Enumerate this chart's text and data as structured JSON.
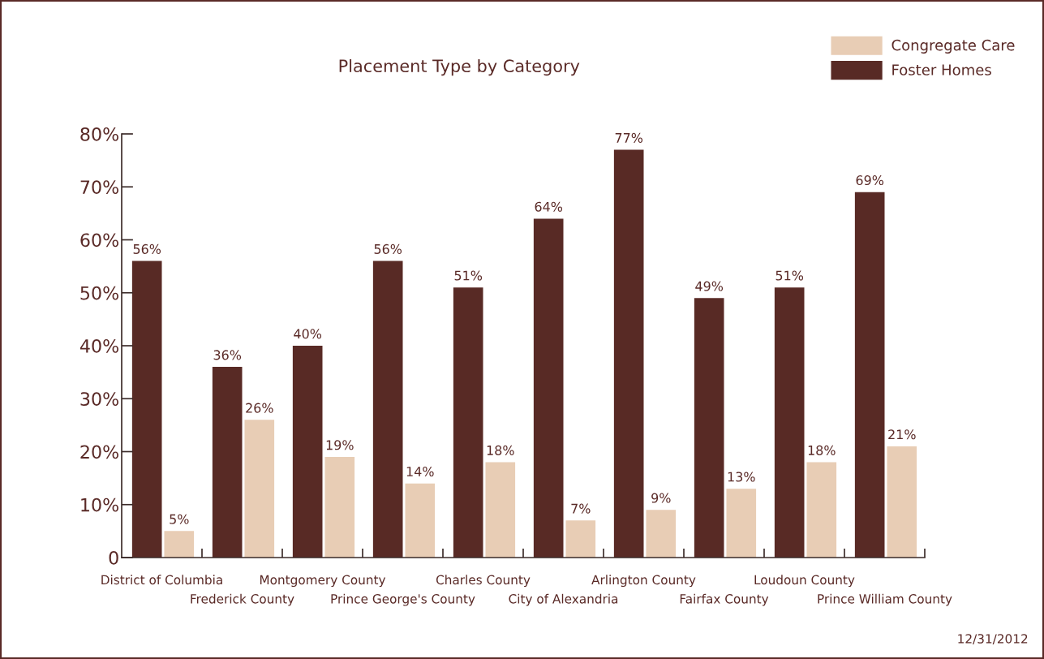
{
  "chart_data": {
    "type": "bar",
    "title": "Placement Type by Category",
    "categories": [
      "District of Columbia",
      "Frederick County",
      "Montgomery County",
      "Prince George's County",
      "Charles County",
      "City of Alexandria",
      "Arlington County",
      "Fairfax County",
      "Loudoun County",
      "Prince William County"
    ],
    "series": [
      {
        "name": "Foster Homes",
        "color": "#582a25",
        "values": [
          56,
          36,
          40,
          56,
          51,
          64,
          77,
          49,
          51,
          69
        ],
        "value_labels": [
          "56%",
          "36%",
          "40%",
          "56%",
          "51%",
          "64%",
          "77%",
          "49%",
          "51%",
          "69%"
        ]
      },
      {
        "name": "Congregate Care",
        "color": "#e8cdb5",
        "values": [
          5,
          26,
          19,
          14,
          18,
          7,
          9,
          13,
          18,
          21
        ],
        "value_labels": [
          "5%",
          "26%",
          "19%",
          "14%",
          "18%",
          "7%",
          "9%",
          "13%",
          "18%",
          "21%"
        ]
      }
    ],
    "ylim": [
      0,
      80
    ],
    "yticks": [
      {
        "value": 0,
        "label": "0"
      },
      {
        "value": 10,
        "label": "10%"
      },
      {
        "value": 20,
        "label": "20%"
      },
      {
        "value": 30,
        "label": "30%"
      },
      {
        "value": 40,
        "label": "40%"
      },
      {
        "value": 50,
        "label": "50%"
      },
      {
        "value": 60,
        "label": "60%"
      },
      {
        "value": 70,
        "label": "70%"
      },
      {
        "value": 80,
        "label": "80%"
      }
    ],
    "grid": false,
    "legend": "top right",
    "annotations": [
      "12/31/2012"
    ]
  }
}
